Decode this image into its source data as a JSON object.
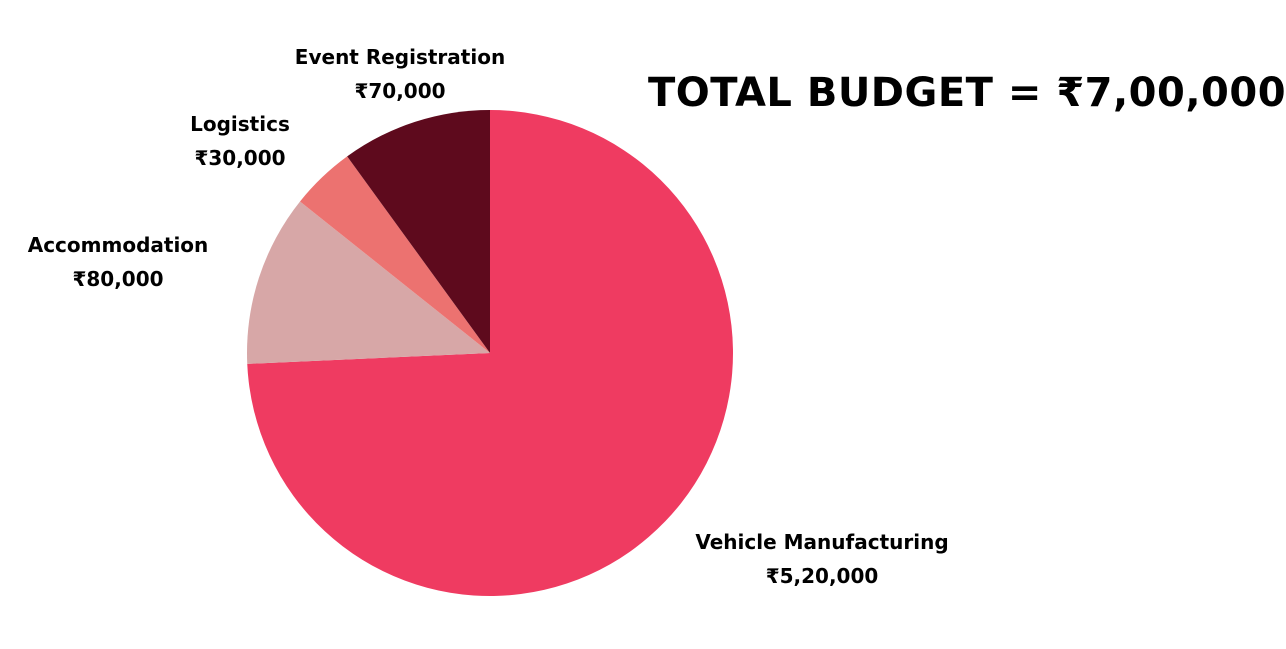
{
  "chart_data": {
    "type": "pie",
    "title": "TOTAL BUDGET = ₹7,00,000",
    "start_angle_deg": 0,
    "direction": "clockwise",
    "slices": [
      {
        "label": "Vehicle Manufacturing",
        "value": 520000,
        "value_label": "₹5,20,000",
        "color": "#EF3B61"
      },
      {
        "label": "Accommodation",
        "value": 80000,
        "value_label": "₹80,000",
        "color": "#D7A7A7"
      },
      {
        "label": "Logistics",
        "value": 30000,
        "value_label": "₹30,000",
        "color": "#EC7270"
      },
      {
        "label": "Event Registration",
        "value": 70000,
        "value_label": "₹70,000",
        "color": "#5E0A1D"
      }
    ]
  }
}
